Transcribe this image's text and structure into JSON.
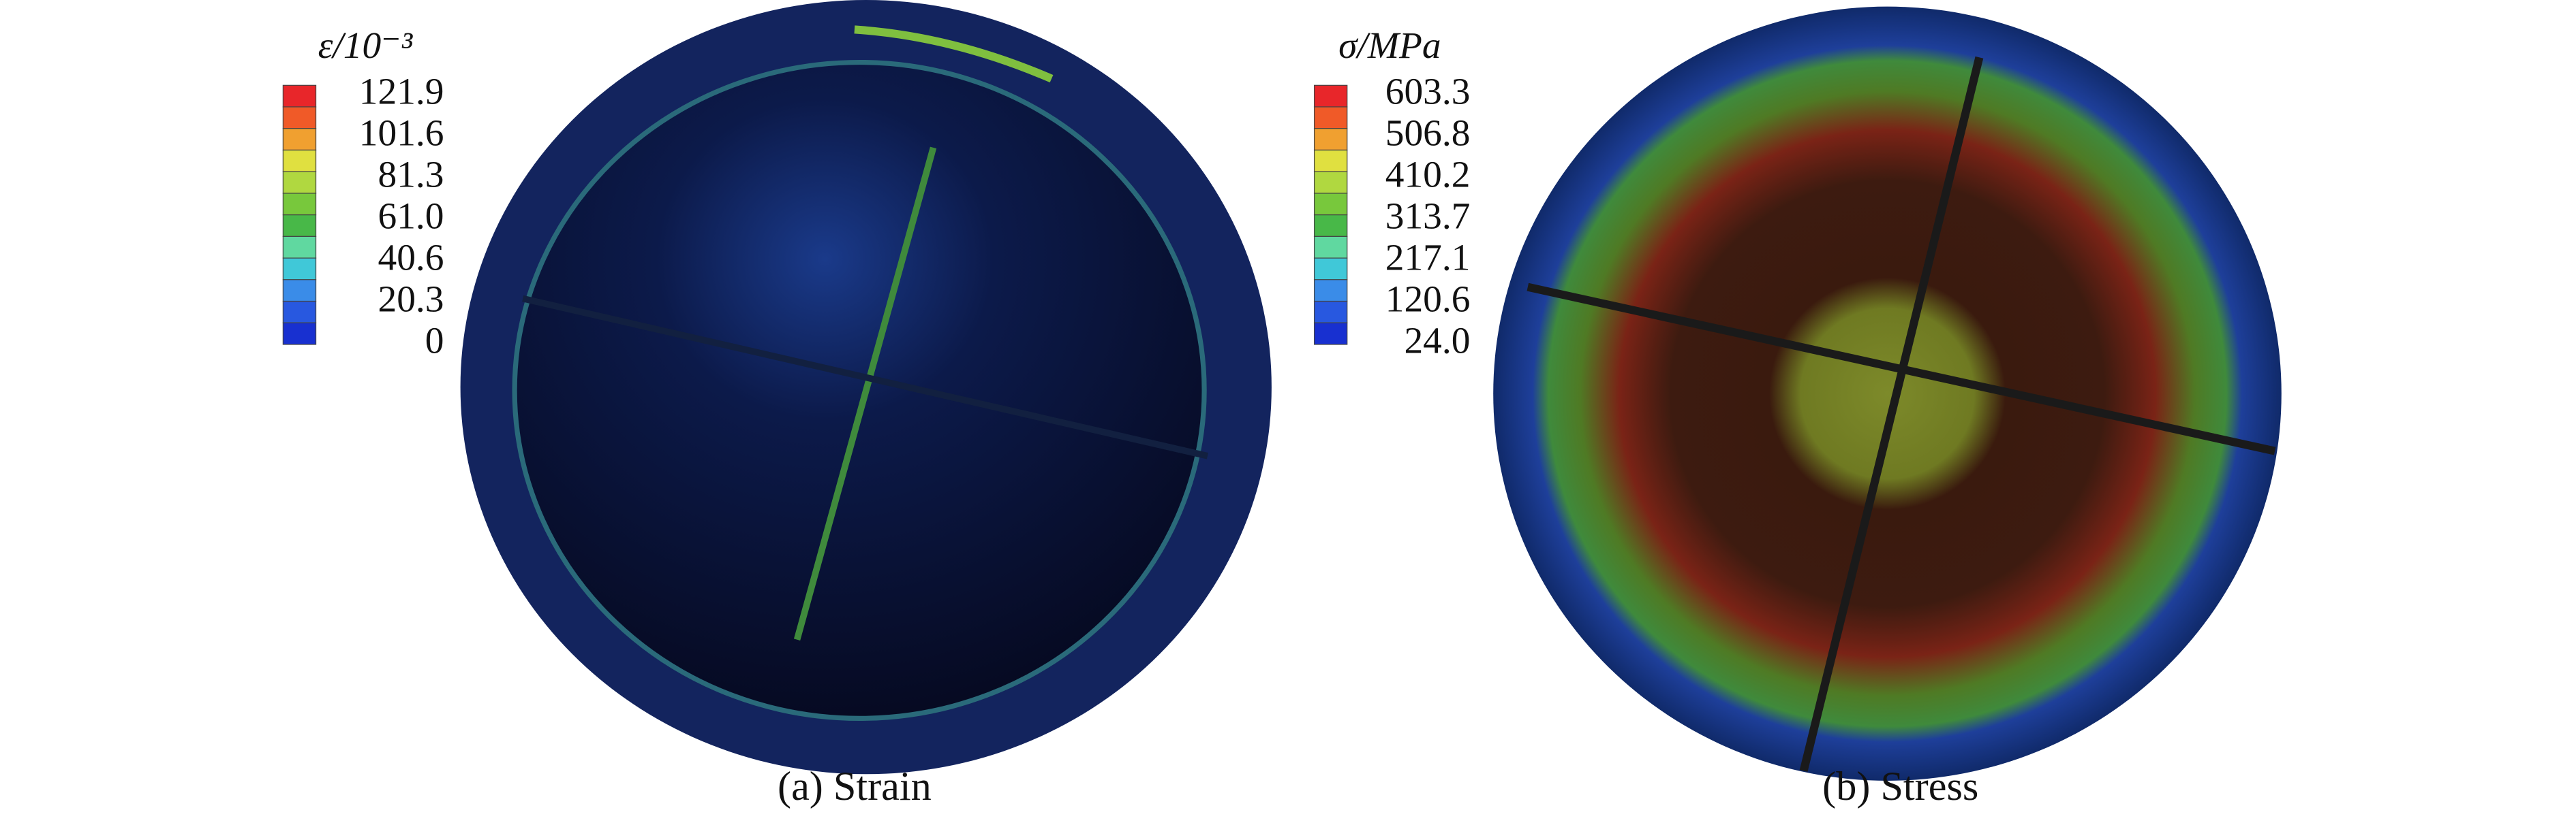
{
  "panels": [
    {
      "legend_title": "ε/10⁻³",
      "legend_labels": [
        "121.9",
        "101.6",
        "81.3",
        "61.0",
        "40.6",
        "20.3",
        "0"
      ],
      "caption": "(a) Strain"
    },
    {
      "legend_title": "σ/MPa",
      "legend_labels": [
        "603.3",
        "506.8",
        "410.2",
        "313.7",
        "217.1",
        "120.6",
        "24.0"
      ],
      "caption": "(b) Stress"
    }
  ]
}
